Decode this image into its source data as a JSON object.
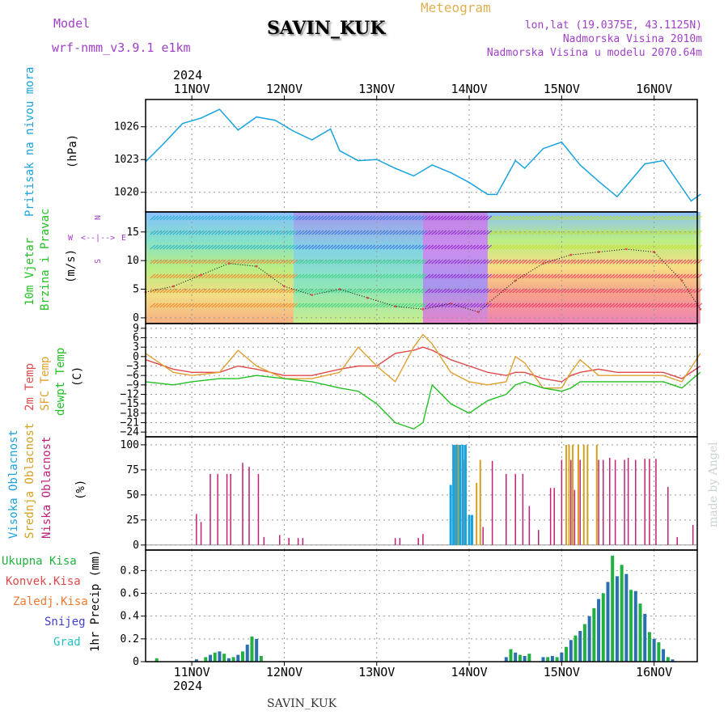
{
  "header": {
    "model_label": "Model",
    "model_value": "wrf-nmm_v3.9.1 e1km",
    "station": "SAVIN_KUK",
    "product": "Meteogram",
    "coords": "lon,lat (19.0375E, 43.1125N)",
    "altitude": "Nadmorska Visina 2010m",
    "model_altitude": "Nadmorska Visina u modelu 2070.64m",
    "top_year": "2024",
    "bottom_year": "2024",
    "footer_station": "SAVIN_KUK",
    "credit": "made by Angel"
  },
  "colors": {
    "pressure": "#1aa3e0",
    "temp2m": "#e04a4a",
    "sfc": "#e0a030",
    "dewpt": "#22c022",
    "high_cloud": "#1aa3e0",
    "mid_cloud": "#d4a020",
    "low_cloud": "#c0207a",
    "precip_total": "#22b040",
    "precip_conv": "#e04a4a",
    "precip_frozen": "#f07a30",
    "precip_snow": "#4040d0",
    "precip_grad": "#20c0c0",
    "wind_purple": "#8a20d0"
  },
  "chart_data": [
    {
      "type": "line",
      "panel": "pressure",
      "labels": [
        "Pritisak na nivou mora",
        "(hPa)"
      ],
      "x_ticks": [
        "11NOV",
        "12NOV",
        "13NOV",
        "14NOV",
        "15NOV",
        "16NOV"
      ],
      "yticks": [
        1020,
        1023,
        1026
      ],
      "ylim": [
        1018.2,
        1028.5
      ],
      "x": [
        0.5,
        0.7,
        0.9,
        1.1,
        1.3,
        1.5,
        1.7,
        1.9,
        2.1,
        2.3,
        2.5,
        2.6,
        2.8,
        3.0,
        3.2,
        3.4,
        3.6,
        3.8,
        4.0,
        4.2,
        4.3,
        4.5,
        4.6,
        4.8,
        5.0,
        5.2,
        5.4,
        5.6,
        5.9,
        6.1,
        6.4,
        6.5
      ],
      "series": [
        {
          "key": "slp",
          "values": [
            1022.8,
            1024.5,
            1026.3,
            1026.8,
            1027.6,
            1025.7,
            1026.9,
            1026.6,
            1025.6,
            1024.8,
            1025.8,
            1023.8,
            1022.9,
            1023.0,
            1022.2,
            1021.5,
            1022.5,
            1021.8,
            1020.9,
            1019.8,
            1019.8,
            1022.9,
            1022.2,
            1024.0,
            1024.6,
            1022.5,
            1021.0,
            1019.6,
            1022.6,
            1022.9,
            1019.2,
            1019.8
          ]
        }
      ]
    },
    {
      "type": "line",
      "panel": "wind",
      "labels": [
        "10m Vjetar",
        "Brzina i Pravac",
        "(m/s)"
      ],
      "compass": [
        "N",
        "W",
        "E",
        "S"
      ],
      "yticks": [
        0,
        5,
        10,
        15
      ],
      "ylim": [
        -1,
        18.5
      ],
      "x": [
        0.5,
        0.8,
        1.1,
        1.4,
        1.7,
        2.0,
        2.3,
        2.6,
        2.9,
        3.2,
        3.5,
        3.8,
        4.1,
        4.2,
        4.5,
        4.8,
        5.1,
        5.4,
        5.7,
        6.0,
        6.3,
        6.5
      ],
      "series": [
        {
          "key": "wind_speed",
          "values": [
            4.5,
            5.5,
            7.5,
            9.5,
            9.0,
            5.5,
            4.0,
            5.0,
            3.5,
            2.0,
            1.5,
            2.5,
            1.0,
            2.5,
            6.5,
            9.5,
            11.0,
            11.5,
            12.0,
            11.5,
            6.5,
            1.5
          ]
        }
      ]
    },
    {
      "type": "line",
      "panel": "temperature",
      "labels": [
        "2m Temp",
        "SFC Temp",
        "dewpt Temp",
        "(C)"
      ],
      "yticks": [
        -24,
        -21,
        -18,
        -15,
        -12,
        -9,
        -6,
        -3,
        0,
        3,
        6,
        9
      ],
      "ylim": [
        -25.5,
        10.5
      ],
      "x": [
        0.5,
        0.8,
        1.0,
        1.3,
        1.5,
        1.7,
        2.0,
        2.3,
        2.6,
        2.8,
        3.0,
        3.2,
        3.4,
        3.5,
        3.6,
        3.8,
        4.0,
        4.2,
        4.4,
        4.5,
        4.6,
        4.8,
        5.0,
        5.1,
        5.2,
        5.4,
        5.6,
        5.9,
        6.1,
        6.3,
        6.5
      ],
      "series": [
        {
          "key": "t2m",
          "values": [
            -1,
            -4,
            -5,
            -5,
            -3,
            -4,
            -6,
            -6,
            -4,
            -3,
            -3,
            1,
            2,
            3,
            2,
            -1,
            -3,
            -5,
            -6,
            -5,
            -5,
            -7,
            -8,
            -6,
            -5,
            -4,
            -5,
            -5,
            -5,
            -7,
            -3
          ]
        },
        {
          "key": "sfc",
          "values": [
            1,
            -5,
            -6,
            -5,
            2,
            -3,
            -7,
            -7,
            -5,
            3,
            -3,
            -8,
            3,
            7,
            4,
            -5,
            -8,
            -9,
            -8,
            0,
            -2,
            -10,
            -10,
            -5,
            -1,
            -6,
            -6,
            -6,
            -6,
            -8,
            1
          ]
        },
        {
          "key": "dewpt",
          "values": [
            -8,
            -9,
            -8,
            -7,
            -7,
            -6,
            -7,
            -8,
            -10,
            -11,
            -15,
            -21,
            -23,
            -21,
            -9,
            -15,
            -18,
            -14,
            -12,
            -9,
            -8,
            -10,
            -11,
            -10,
            -8,
            -8,
            -8,
            -8,
            -8,
            -10,
            -5
          ]
        }
      ]
    },
    {
      "type": "bar",
      "panel": "cloud",
      "labels": [
        "Visoka Oblacnost",
        "Srednja Oblacnost",
        "Niska Oblacnost",
        "(%)"
      ],
      "yticks": [
        0,
        25,
        50,
        75,
        100
      ],
      "ylim": [
        -5,
        108
      ],
      "series": [
        {
          "key": "high",
          "x": [
            3.8,
            3.83,
            3.86,
            3.9,
            3.93,
            3.96,
            4.0,
            4.03
          ],
          "values": [
            60,
            100,
            100,
            100,
            100,
            100,
            30,
            30
          ]
        },
        {
          "key": "mid",
          "x": [
            3.85,
            3.88,
            3.94,
            4.08,
            4.12,
            5.05,
            5.08,
            5.12,
            5.18,
            5.24,
            5.28,
            5.38
          ],
          "values": [
            100,
            100,
            85,
            62,
            85,
            100,
            100,
            100,
            100,
            100,
            100,
            100
          ]
        },
        {
          "key": "low",
          "x": [
            1.05,
            1.1,
            1.2,
            1.28,
            1.38,
            1.42,
            1.55,
            1.62,
            1.72,
            1.78,
            1.95,
            2.05,
            2.15,
            2.2,
            3.2,
            3.25,
            3.45,
            3.5,
            4.15,
            4.25,
            4.4,
            4.5,
            4.58,
            4.65,
            4.75,
            4.88,
            4.92,
            5.0,
            5.1,
            5.14,
            5.2,
            5.28,
            5.4,
            5.45,
            5.52,
            5.58,
            5.68,
            5.72,
            5.8,
            5.9,
            5.95,
            6.02,
            6.15,
            6.25,
            6.42
          ],
          "values": [
            31,
            23,
            71,
            71,
            71,
            71,
            82,
            78,
            71,
            8,
            10,
            7,
            7,
            7,
            7,
            7,
            7,
            11,
            18,
            84,
            71,
            71,
            71,
            39,
            15,
            57,
            57,
            85,
            85,
            55,
            85,
            53,
            85,
            85,
            87,
            85,
            85,
            87,
            85,
            86,
            86,
            86,
            58,
            8,
            20
          ]
        }
      ]
    },
    {
      "type": "bar",
      "panel": "precip",
      "labels": [
        "Ukupna Kisa",
        "Konvek.Kisa",
        "Zaledj.Kisa",
        "Snijeg",
        "Grad",
        "1hr Precip (mm)"
      ],
      "x_ticks": [
        "11NOV",
        "12NOV",
        "13NOV",
        "14NOV",
        "15NOV",
        "16NOV"
      ],
      "yticks": [
        0,
        0.2,
        0.4,
        0.6,
        0.8
      ],
      "ylim": [
        0,
        0.98
      ],
      "series": [
        {
          "key": "total",
          "x": [
            0.62,
            1.05,
            1.15,
            1.2,
            1.25,
            1.3,
            1.35,
            1.4,
            1.45,
            1.5,
            1.55,
            1.6,
            1.65,
            1.7,
            1.75,
            4.4,
            4.45,
            4.5,
            4.55,
            4.6,
            4.65,
            4.8,
            4.85,
            4.9,
            4.95,
            5.0,
            5.05,
            5.1,
            5.15,
            5.2,
            5.25,
            5.3,
            5.35,
            5.4,
            5.45,
            5.5,
            5.55,
            5.6,
            5.65,
            5.7,
            5.75,
            5.8,
            5.85,
            5.9,
            5.95,
            6.0,
            6.05,
            6.1,
            6.15,
            6.2
          ],
          "values": [
            0.03,
            0.02,
            0.04,
            0.06,
            0.08,
            0.09,
            0.07,
            0.03,
            0.04,
            0.06,
            0.09,
            0.15,
            0.22,
            0.2,
            0.05,
            0.04,
            0.11,
            0.08,
            0.06,
            0.05,
            0.07,
            0.04,
            0.04,
            0.05,
            0.04,
            0.08,
            0.13,
            0.19,
            0.23,
            0.27,
            0.33,
            0.4,
            0.47,
            0.55,
            0.6,
            0.7,
            0.93,
            0.75,
            0.85,
            0.77,
            0.63,
            0.62,
            0.51,
            0.42,
            0.26,
            0.2,
            0.17,
            0.11,
            0.04,
            0.02
          ]
        }
      ]
    }
  ]
}
